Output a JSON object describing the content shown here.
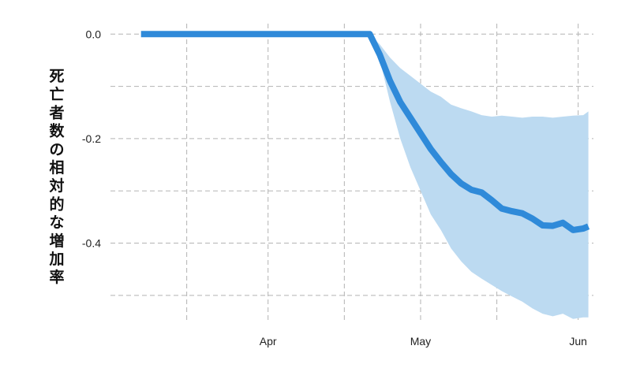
{
  "chart_data": {
    "type": "line",
    "ylabel": "死亡者数の相対的な増加率",
    "xlabel": "",
    "title": "",
    "x_ticks": [
      {
        "date": "2020-04-01",
        "label": "Apr"
      },
      {
        "date": "2020-05-01",
        "label": "May"
      },
      {
        "date": "2020-06-01",
        "label": "Jun"
      }
    ],
    "x_minor_ticks": [
      "2020-03-16",
      "2020-04-16",
      "2020-05-16"
    ],
    "xlim": [
      "2020-03-01",
      "2020-06-04"
    ],
    "ylim": [
      -0.55,
      0.02
    ],
    "y_ticks": [
      {
        "value": 0.0,
        "label": "0.0"
      },
      {
        "value": -0.2,
        "label": "-0.2"
      },
      {
        "value": -0.4,
        "label": "-0.4"
      }
    ],
    "y_minor_ticks": [
      -0.1,
      -0.3,
      -0.5
    ],
    "grid": true,
    "colors": {
      "line": "#2f8ad9",
      "band": "#bcdaf1",
      "grid": "#b3b3b3"
    },
    "series": [
      {
        "x": [
          "2020-03-07",
          "2020-03-15",
          "2020-03-25",
          "2020-04-05",
          "2020-04-15",
          "2020-04-21",
          "2020-04-23",
          "2020-04-25",
          "2020-04-27",
          "2020-04-29",
          "2020-05-01",
          "2020-05-03",
          "2020-05-05",
          "2020-05-07",
          "2020-05-09",
          "2020-05-11",
          "2020-05-13",
          "2020-05-15",
          "2020-05-17",
          "2020-05-19",
          "2020-05-21",
          "2020-05-23",
          "2020-05-25",
          "2020-05-27",
          "2020-05-29",
          "2020-05-31",
          "2020-06-02",
          "2020-06-03"
        ],
        "y": [
          0.0,
          0.0,
          0.0,
          0.0,
          0.0,
          0.0,
          -0.04,
          -0.09,
          -0.13,
          -0.16,
          -0.19,
          -0.22,
          -0.245,
          -0.268,
          -0.286,
          -0.298,
          -0.303,
          -0.318,
          -0.334,
          -0.339,
          -0.343,
          -0.353,
          -0.366,
          -0.367,
          -0.361,
          -0.375,
          -0.372,
          -0.368
        ],
        "lower": [
          0.0,
          0.0,
          0.0,
          0.0,
          0.0,
          0.0,
          -0.05,
          -0.13,
          -0.2,
          -0.255,
          -0.3,
          -0.345,
          -0.375,
          -0.41,
          -0.435,
          -0.455,
          -0.468,
          -0.48,
          -0.492,
          -0.502,
          -0.512,
          -0.525,
          -0.535,
          -0.54,
          -0.535,
          -0.545,
          -0.542,
          -0.542
        ],
        "upper": [
          0.0,
          0.0,
          0.0,
          0.0,
          0.0,
          0.0,
          -0.02,
          -0.045,
          -0.065,
          -0.08,
          -0.095,
          -0.11,
          -0.12,
          -0.135,
          -0.142,
          -0.148,
          -0.155,
          -0.158,
          -0.156,
          -0.158,
          -0.16,
          -0.158,
          -0.158,
          -0.16,
          -0.158,
          -0.156,
          -0.155,
          -0.148
        ]
      }
    ]
  }
}
